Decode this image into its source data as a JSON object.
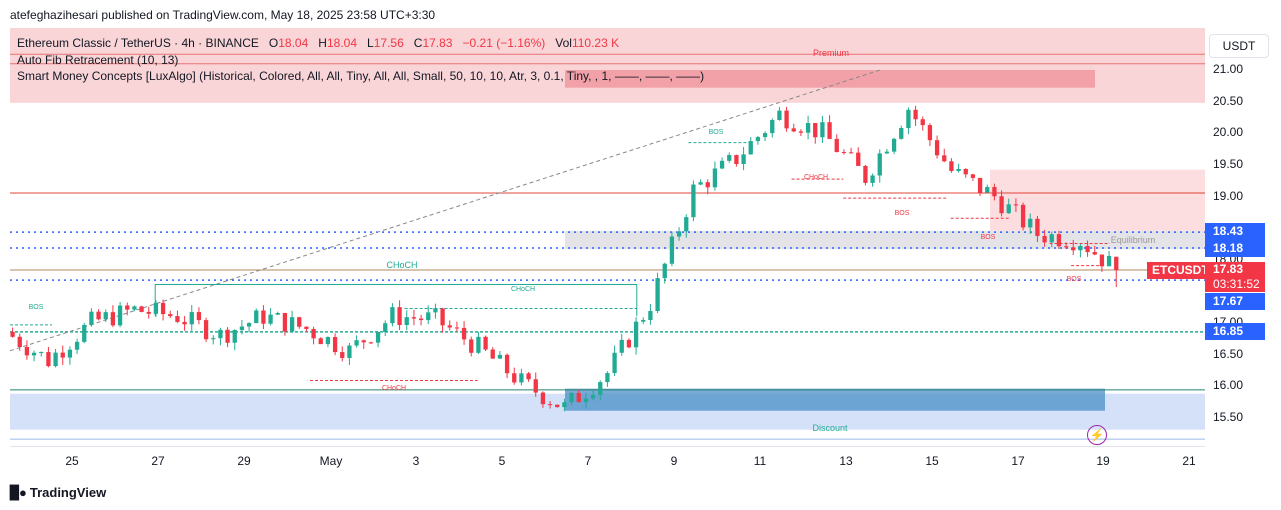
{
  "header": {
    "publisher_line": "atefeghazihesari published on TradingView.com, May 18, 2025 23:58 UTC+3:30"
  },
  "legend": {
    "symbol": "Ethereum Classic / TetherUS · 4h · BINANCE",
    "o_label": "O",
    "o_value": "18.04",
    "h_label": "H",
    "h_value": "18.04",
    "l_label": "L",
    "l_value": "17.56",
    "c_label": "C",
    "c_value": "17.83",
    "change": "−0.21 (−1.16%)",
    "vol_label": "Vol",
    "vol_value": "110.23 K",
    "indicator1": "Auto Fib Retracement (10, 13)",
    "indicator2": "Smart Money Concepts [LuxAlgo] (Historical, Colored, All, All, Tiny, All, All, Small, 50, 10, 10, Atr, 3, 0.1, Tiny, , 1, ——, ——, ——)"
  },
  "price_axis": {
    "unit_button": "USDT",
    "ticks": [
      "21.00",
      "20.50",
      "20.00",
      "19.50",
      "19.00",
      "18.00",
      "17.00",
      "16.50",
      "16.00",
      "15.50"
    ],
    "tags": {
      "level_1843": "18.43",
      "level_1818": "18.18",
      "level_1767": "17.67",
      "level_1685": "16.85"
    },
    "symbol_tag": "ETCUSDT",
    "last_price": "17.83",
    "countdown": "03:31:52"
  },
  "time_axis": {
    "ticks": [
      "25",
      "27",
      "29",
      "May",
      "3",
      "5",
      "7",
      "9",
      "11",
      "13",
      "15",
      "17",
      "19",
      "21"
    ]
  },
  "annotations": {
    "premium": "Premium",
    "discount": "Discount",
    "equilibrium": "Equilibrium",
    "choch_big": "CHoCH",
    "choch_mid": "CHoCH",
    "choch_low": "CHoCH",
    "choch_top": "CHoCH",
    "bos_left": "BOS",
    "bos_top": "BOS",
    "bos_r1": "BOS",
    "bos_r2": "BOS",
    "bos_r3": "BOS"
  },
  "footer": {
    "brand": "TradingView"
  },
  "colors": {
    "up": "#22ab94",
    "down": "#f23645",
    "premium_zone": "#f7c7cb",
    "discount_zone": "#c9daf8",
    "level_blue": "#2962ff",
    "level_green": "#22ab94"
  },
  "chart_data": {
    "type": "candlestick",
    "symbol": "ETCUSDT",
    "interval": "4h",
    "y_unit": "USDT",
    "ylim": [
      15.1,
      21.35
    ],
    "x_range_days": [
      "2025-04-23",
      "2025-05-21"
    ],
    "last": {
      "open": 18.04,
      "high": 18.04,
      "low": 17.56,
      "close": 17.83
    },
    "levels": [
      18.43,
      18.18,
      17.67,
      16.85
    ],
    "zones": {
      "premium": [
        20.5,
        21.35
      ],
      "equilibrium": [
        18.16,
        18.45
      ],
      "discount": [
        15.5,
        15.95
      ]
    },
    "anchor_closes": [
      {
        "date": "2025-04-23",
        "close": 16.85
      },
      {
        "date": "2025-04-24",
        "close": 16.4
      },
      {
        "date": "2025-04-25",
        "close": 17.0
      },
      {
        "date": "2025-04-26",
        "close": 17.2
      },
      {
        "date": "2025-04-27",
        "close": 17.1
      },
      {
        "date": "2025-04-28",
        "close": 16.8
      },
      {
        "date": "2025-04-29",
        "close": 17.1
      },
      {
        "date": "2025-04-30",
        "close": 16.9
      },
      {
        "date": "2025-05-01",
        "close": 16.55
      },
      {
        "date": "2025-05-02",
        "close": 17.1
      },
      {
        "date": "2025-05-03",
        "close": 17.05
      },
      {
        "date": "2025-05-04",
        "close": 16.6
      },
      {
        "date": "2025-05-05",
        "close": 16.05
      },
      {
        "date": "2025-05-06",
        "close": 15.65
      },
      {
        "date": "2025-05-07",
        "close": 16.2
      },
      {
        "date": "2025-05-08",
        "close": 17.3
      },
      {
        "date": "2025-05-09",
        "close": 19.1
      },
      {
        "date": "2025-05-10",
        "close": 19.6
      },
      {
        "date": "2025-05-11",
        "close": 20.3
      },
      {
        "date": "2025-05-12",
        "close": 20.0
      },
      {
        "date": "2025-05-13",
        "close": 19.3
      },
      {
        "date": "2025-05-14",
        "close": 20.4
      },
      {
        "date": "2025-05-15",
        "close": 19.4
      },
      {
        "date": "2025-05-16",
        "close": 19.0
      },
      {
        "date": "2025-05-17",
        "close": 18.4
      },
      {
        "date": "2025-05-18",
        "close": 18.3
      },
      {
        "date": "2025-05-18T20:00",
        "close": 17.83
      }
    ]
  }
}
